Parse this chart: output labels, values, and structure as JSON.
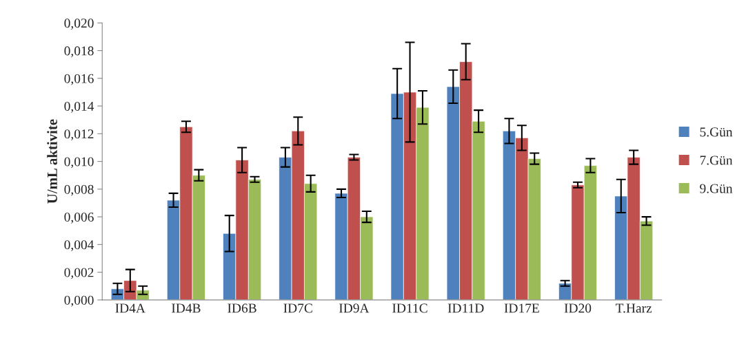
{
  "chart_data": {
    "type": "bar",
    "ylabel": "U/mL aktivite",
    "categories": [
      "ID4A",
      "ID4B",
      "ID6B",
      "ID7C",
      "ID9A",
      "ID11C",
      "ID11D",
      "ID17E",
      "ID20",
      "T.Harz"
    ],
    "series": [
      {
        "name": "5.Gün",
        "color": "#4f81bd",
        "values": [
          0.0008,
          0.0072,
          0.0048,
          0.0103,
          0.0077,
          0.0149,
          0.0154,
          0.0122,
          0.0012,
          0.0075
        ],
        "errors": [
          0.0004,
          0.0005,
          0.0013,
          0.0007,
          0.0003,
          0.0018,
          0.0012,
          0.0009,
          0.0002,
          0.0012
        ]
      },
      {
        "name": "7.Gün",
        "color": "#c0504d",
        "values": [
          0.0014,
          0.0125,
          0.0101,
          0.0122,
          0.0103,
          0.015,
          0.0172,
          0.0117,
          0.0083,
          0.0103
        ],
        "errors": [
          0.0008,
          0.0004,
          0.0009,
          0.001,
          0.0002,
          0.0036,
          0.0013,
          0.0009,
          0.0002,
          0.0005
        ]
      },
      {
        "name": "9.Gün",
        "color": "#9bbb59",
        "values": [
          0.0007,
          0.009,
          0.0087,
          0.0084,
          0.006,
          0.0139,
          0.0129,
          0.0102,
          0.0097,
          0.0057
        ],
        "errors": [
          0.0003,
          0.0004,
          0.0002,
          0.0006,
          0.0004,
          0.0012,
          0.0008,
          0.0004,
          0.0005,
          0.0003
        ]
      }
    ],
    "ylim": [
      0,
      0.02
    ],
    "yticks": [
      {
        "value": 0,
        "label": "0,000"
      },
      {
        "value": 0.002,
        "label": "0,002"
      },
      {
        "value": 0.004,
        "label": "0,004"
      },
      {
        "value": 0.006,
        "label": "0,006"
      },
      {
        "value": 0.008,
        "label": "0,008"
      },
      {
        "value": 0.01,
        "label": "0,010"
      },
      {
        "value": 0.012,
        "label": "0,012"
      },
      {
        "value": 0.014,
        "label": "0,014"
      },
      {
        "value": 0.016,
        "label": "0,016"
      },
      {
        "value": 0.018,
        "label": "0,018"
      },
      {
        "value": 0.02,
        "label": "0,020"
      }
    ],
    "grid": false,
    "legend": "right"
  }
}
